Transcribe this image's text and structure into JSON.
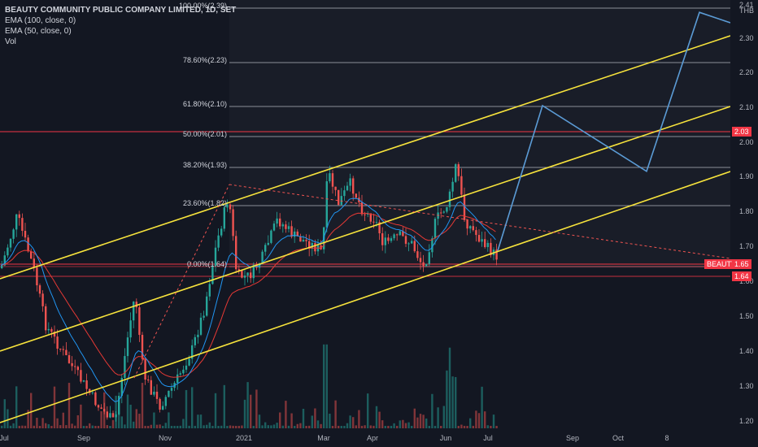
{
  "header": {
    "title": "BEAUTY COMMUNITY PUBLIC COMPANY LIMITED, 1D, SET",
    "indicators": [
      "EMA (100, close, 0)",
      "EMA (50, close, 0)",
      "Vol"
    ]
  },
  "currency": "THB",
  "price_ticks": [
    "2.41",
    "2.30",
    "2.20",
    "2.10",
    "2.00",
    "1.90",
    "1.80",
    "1.70",
    "1.60",
    "1.50",
    "1.40",
    "1.30",
    "1.20"
  ],
  "time_ticks": [
    "Jul",
    "Sep",
    "Nov",
    "2021",
    "Mar",
    "Apr",
    "Jun",
    "Jul",
    "Sep",
    "Oct",
    "8"
  ],
  "fib_levels": [
    {
      "label": "100.00%(2.39)",
      "price": 2.39
    },
    {
      "label": "78.60%(2.23)",
      "price": 2.23
    },
    {
      "label": "61.80%(2.10)",
      "price": 2.1
    },
    {
      "label": "50.00%(2.01)",
      "price": 2.01
    },
    {
      "label": "38.20%(1.93)",
      "price": 1.93
    },
    {
      "label": "23.60%(1.82)",
      "price": 1.82
    },
    {
      "label": "0.00%(1.64)",
      "price": 1.64
    }
  ],
  "badges": {
    "level_203": {
      "text": "2.03",
      "color": "#f23645"
    },
    "symbol": {
      "text": "BEAUTY",
      "color": "#f23645"
    },
    "last_price": {
      "text": "1.65",
      "color": "#f23645"
    },
    "level_164": {
      "text": "1.64",
      "color": "#f23645"
    }
  },
  "colors": {
    "background": "#131722",
    "up": "#26a69a",
    "down": "#ef5350",
    "channel": "#f7e33c",
    "ema50": "#2196f3",
    "ema100": "#e53935",
    "projection": "#5b9bd5",
    "fib": "#b2b5be",
    "red_level": "#f23645"
  },
  "chart_data": {
    "type": "candlestick",
    "symbol": "BEAUTY",
    "interval": "1D",
    "exchange": "SET",
    "ylim": [
      1.18,
      2.42
    ],
    "projection_path": [
      {
        "date": "2021-07-01",
        "price": 1.7
      },
      {
        "date": "2021-08-01",
        "price": 2.12
      },
      {
        "date": "2021-09-20",
        "price": 1.93
      },
      {
        "date": "2021-10-20",
        "price": 2.39
      },
      {
        "date": "2021-11-05",
        "price": 2.36
      }
    ],
    "horizontal_levels": [
      2.03,
      1.65,
      1.64
    ]
  }
}
